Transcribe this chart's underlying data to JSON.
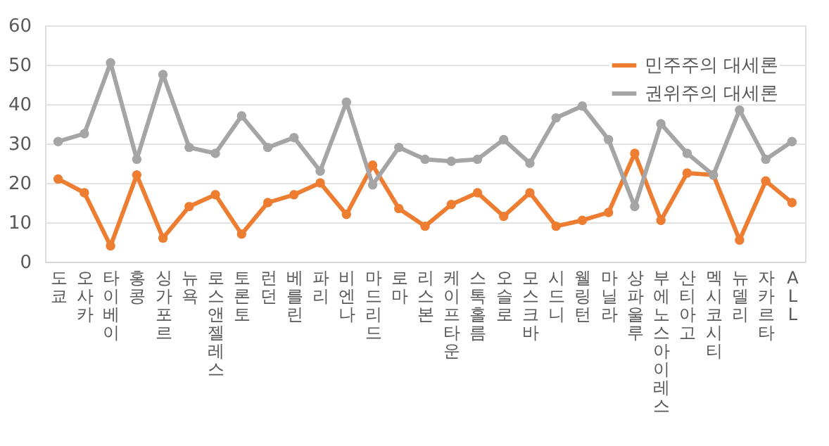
{
  "chart_data": {
    "type": "line",
    "categories": [
      "도쿄",
      "오사카",
      "타이베이",
      "홍콩",
      "싱가포르",
      "뉴욕",
      "로스 앤젤레스",
      "토론토",
      "런던",
      "베를린",
      "파리",
      "비엔나",
      "마드리드",
      "로마",
      "리스본",
      "케이프 타운",
      "스톡홀름",
      "오슬로",
      "모스크바",
      "시드니",
      "웰링턴",
      "마닐라",
      "상파울루",
      "부에노스 아이레스",
      "산티아고",
      "멕시코 시티",
      "뉴 델리",
      "자카르타",
      "ALL"
    ],
    "series": [
      {
        "name": "민주주의 대세론",
        "color": "#ed7d31",
        "values": [
          21,
          17.5,
          4,
          22,
          6,
          14,
          17,
          7,
          15,
          17,
          20,
          12,
          24.5,
          13.5,
          9,
          14.5,
          17.5,
          11.5,
          17.5,
          9,
          10.5,
          12.5,
          27.5,
          10.5,
          22.5,
          22,
          5.5,
          20.5,
          15
        ]
      },
      {
        "name": "권위주의 대세론",
        "color": "#a5a5a5",
        "values": [
          30.5,
          32.5,
          50.5,
          26,
          47.5,
          29,
          27.5,
          37,
          29,
          31.5,
          23,
          40.5,
          19.5,
          29,
          26,
          25.5,
          26,
          31,
          25,
          36.5,
          39.5,
          31,
          14,
          35,
          27.5,
          22,
          38.5,
          26,
          30.5
        ]
      }
    ],
    "ylim": [
      0,
      60
    ],
    "yticks": [
      0,
      10,
      20,
      30,
      40,
      50,
      60
    ],
    "grid": "y",
    "legend": "top right",
    "marker": "circle",
    "line_style": "solid"
  }
}
